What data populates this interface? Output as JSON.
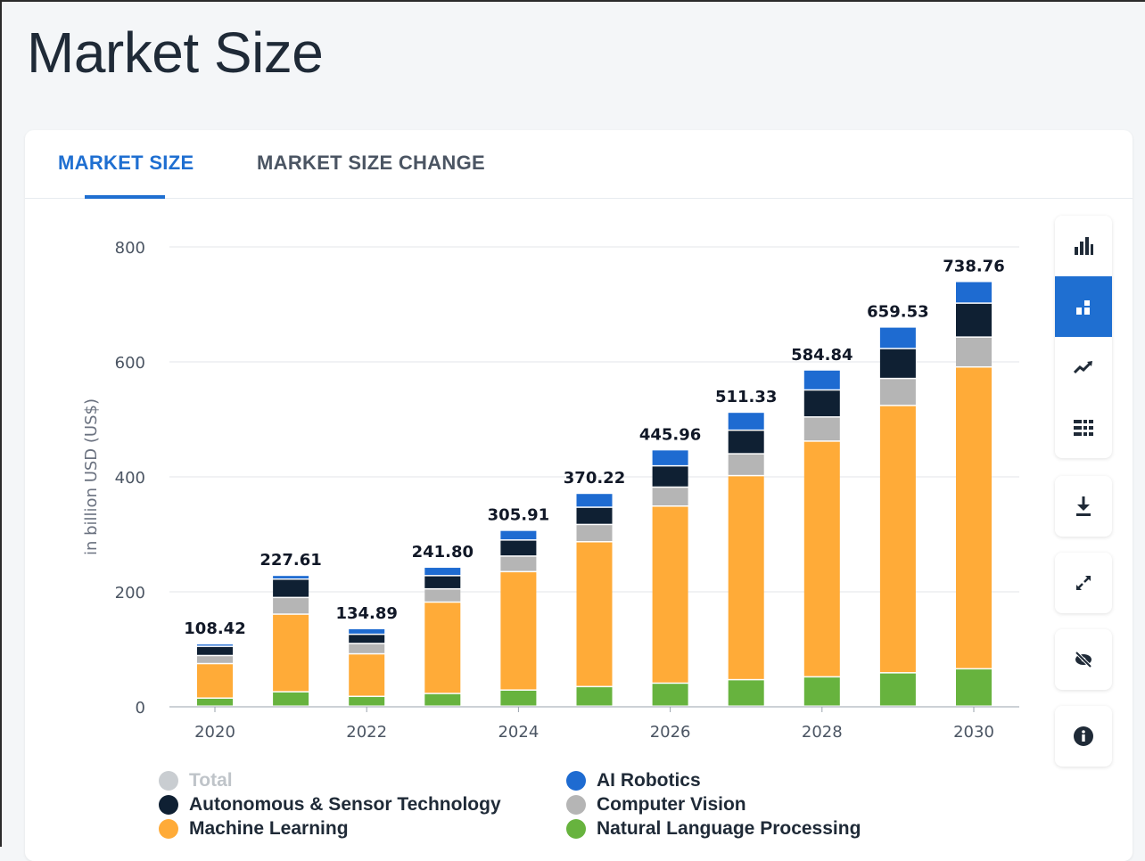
{
  "page": {
    "title": "Market Size"
  },
  "tabs": [
    {
      "label": "MARKET SIZE",
      "active": true
    },
    {
      "label": "MARKET SIZE CHANGE",
      "active": false
    }
  ],
  "toolbar": {
    "view_buttons": [
      {
        "icon": "bar-chart-icon",
        "active": false
      },
      {
        "icon": "stacked-bar-chart-icon",
        "active": true
      },
      {
        "icon": "line-trend-icon",
        "active": false
      },
      {
        "icon": "table-grid-icon",
        "active": false
      }
    ],
    "download_icon": "download-icon",
    "fullscreen_icon": "expand-icon",
    "hide_icon": "eye-off-icon",
    "info_icon": "info-icon",
    "accent_color": "#1f6fd1"
  },
  "chart_data": {
    "type": "bar",
    "stacked": true,
    "title": "",
    "xlabel": "",
    "ylabel": "in billion USD (US$)",
    "ylim": [
      0,
      800
    ],
    "yticks": [
      0,
      200,
      400,
      600,
      800
    ],
    "grid": true,
    "x": [
      2020,
      2021,
      2022,
      2023,
      2024,
      2025,
      2026,
      2027,
      2028,
      2029,
      2030
    ],
    "xtick_labels": [
      "2020",
      "2022",
      "2024",
      "2026",
      "2028",
      "2030"
    ],
    "totals": [
      "108.42",
      "227.61",
      "134.89",
      "241.80",
      "305.91",
      "370.22",
      "445.96",
      "511.33",
      "584.84",
      "659.53",
      "738.76"
    ],
    "series": [
      {
        "name": "Natural Language Processing",
        "color": "#67b33e",
        "values": [
          14,
          25,
          17,
          22,
          28,
          34,
          40,
          46,
          51,
          58,
          65
        ]
      },
      {
        "name": "Machine Learning",
        "color": "#ffab38",
        "values": [
          60,
          135,
          74,
          159,
          206,
          252,
          308,
          355,
          410,
          465,
          525
        ]
      },
      {
        "name": "Computer Vision",
        "color": "#b5b5b5",
        "values": [
          14,
          29,
          18,
          23,
          27,
          30,
          33,
          38,
          42,
          47,
          52
        ]
      },
      {
        "name": "Autonomous & Sensor Technology",
        "color": "#0f2033",
        "values": [
          16,
          32,
          16,
          23,
          28,
          30,
          37,
          41,
          47,
          52,
          59
        ]
      },
      {
        "name": "AI Robotics",
        "color": "#1e6bd1",
        "values": [
          4.42,
          6.61,
          9.89,
          14.8,
          16.91,
          24.22,
          27.96,
          31.33,
          34.84,
          37.53,
          37.76
        ]
      }
    ],
    "legend": [
      {
        "name": "Total",
        "color": "#c9cdd1",
        "muted": true
      },
      {
        "name": "AI Robotics",
        "color": "#1e6bd1"
      },
      {
        "name": "Autonomous & Sensor Technology",
        "color": "#0f2033"
      },
      {
        "name": "Computer Vision",
        "color": "#b5b5b5"
      },
      {
        "name": "Machine Learning",
        "color": "#ffab38"
      },
      {
        "name": "Natural Language Processing",
        "color": "#67b33e"
      }
    ],
    "legend_position": "bottom"
  }
}
